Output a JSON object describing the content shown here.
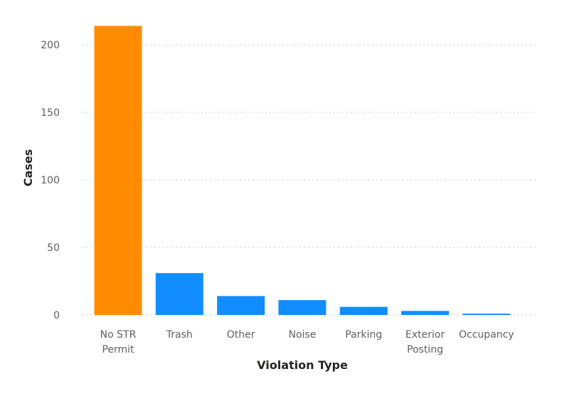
{
  "chart_data": {
    "type": "bar",
    "title": "",
    "xlabel": "Violation Type",
    "ylabel": "Cases",
    "categories": [
      [
        "No STR",
        "Permit"
      ],
      [
        "Trash"
      ],
      [
        "Other"
      ],
      [
        "Noise"
      ],
      [
        "Parking"
      ],
      [
        "Exterior",
        "Posting"
      ],
      [
        "Occupancy"
      ]
    ],
    "values": [
      214,
      31,
      14,
      11,
      6,
      3,
      1
    ],
    "highlight_index": 0,
    "colors": {
      "highlight": "#FF8C00",
      "default": "#118DFF"
    },
    "ylim": [
      0,
      220
    ],
    "yticks": [
      0,
      50,
      100,
      150,
      200
    ],
    "grid": true,
    "legend": "none"
  }
}
